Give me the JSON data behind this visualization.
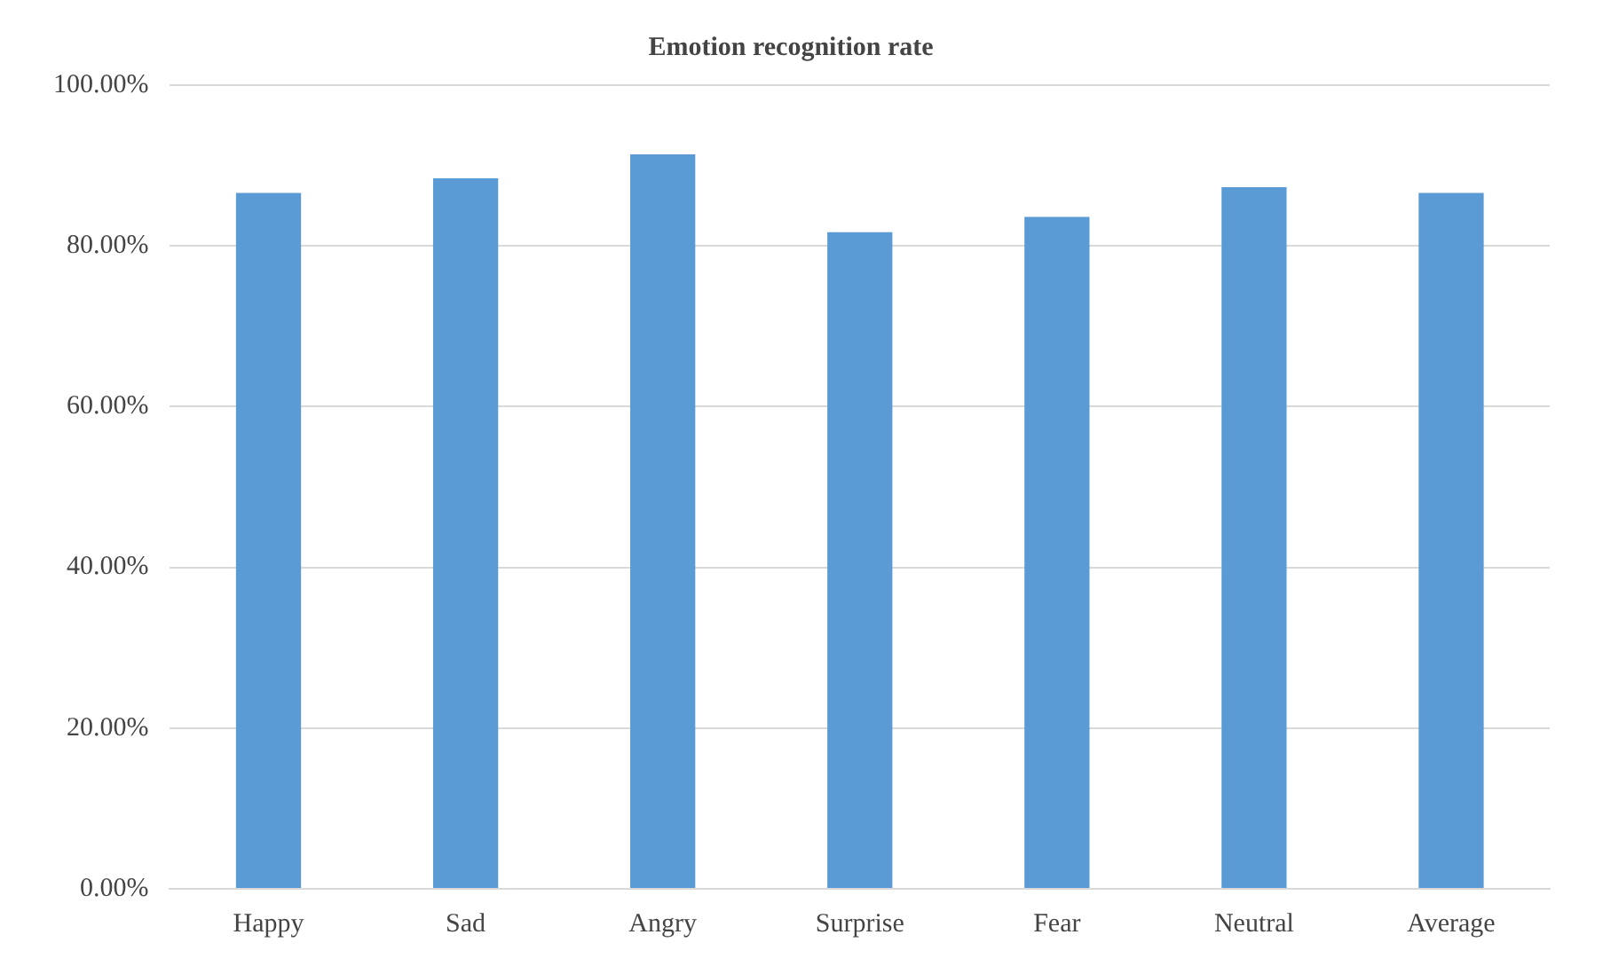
{
  "chart_data": {
    "type": "bar",
    "title": "Emotion recognition rate",
    "categories": [
      "Happy",
      "Sad",
      "Angry",
      "Surprise",
      "Fear",
      "Neutral",
      "Average"
    ],
    "values": [
      86.6,
      88.4,
      91.4,
      81.7,
      83.6,
      87.3,
      86.6
    ],
    "color": "#5b9bd5",
    "ylim": [
      0,
      100
    ],
    "yticks": [
      {
        "value": 0,
        "label": "0.00%"
      },
      {
        "value": 20,
        "label": "20.00%"
      },
      {
        "value": 40,
        "label": "40.00%"
      },
      {
        "value": 60,
        "label": "60.00%"
      },
      {
        "value": 80,
        "label": "80.00%"
      },
      {
        "value": 100,
        "label": "100.00%"
      }
    ],
    "grid": "y",
    "legend": false
  }
}
